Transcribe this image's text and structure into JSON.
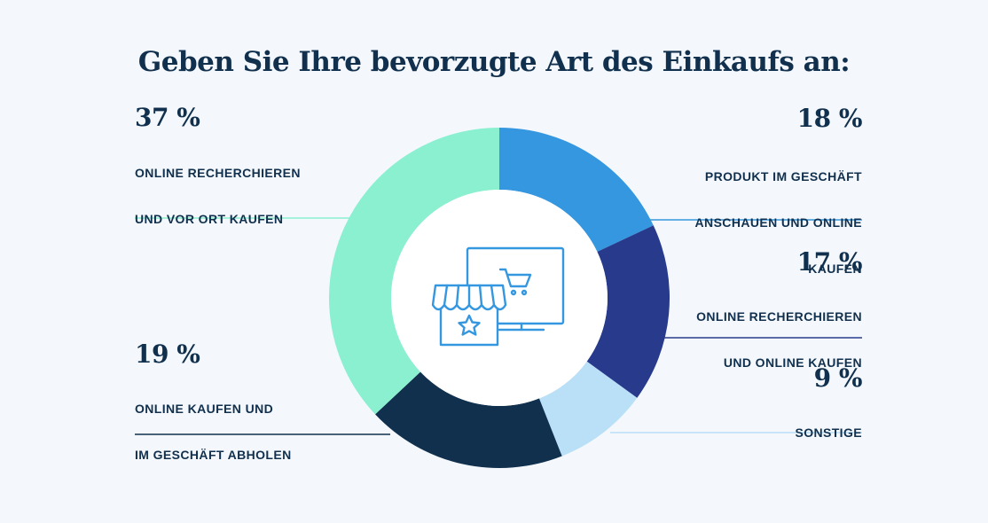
{
  "chart_data": {
    "type": "pie",
    "title": "Geben Sie Ihre bevorzugte Art des Einkaufs an:",
    "categories": [
      "PRODUKT IM GESCHÄFT ANSCHAUEN UND ONLINE KAUFEN",
      "ONLINE RECHERCHIEREN UND ONLINE KAUFEN",
      "SONSTIGE",
      "ONLINE KAUFEN UND IM GESCHÄFT ABHOLEN",
      "ONLINE RECHERCHIEREN UND VOR ORT KAUFEN"
    ],
    "values": [
      18,
      17,
      9,
      19,
      37
    ],
    "value_labels": [
      "18 %",
      "17 %",
      "9 %",
      "19 %",
      "37 %"
    ],
    "label_lines": [
      [
        "PRODUKT IM GESCHÄFT",
        "ANSCHAUEN UND ONLINE",
        "KAUFEN"
      ],
      [
        "ONLINE RECHERCHIEREN",
        "UND ONLINE KAUFEN"
      ],
      [
        "SONSTIGE"
      ],
      [
        "ONLINE KAUFEN UND",
        "IM GESCHÄFT ABHOLEN"
      ],
      [
        "ONLINE RECHERCHIEREN",
        "UND VOR ORT KAUFEN"
      ]
    ],
    "colors": [
      "#3497df",
      "#283a8c",
      "#b9e0f6",
      "#11304d",
      "#8af0cf"
    ],
    "donut": true,
    "center_icon": "store-and-monitor-shopping-cart-icon",
    "legend": "none"
  }
}
